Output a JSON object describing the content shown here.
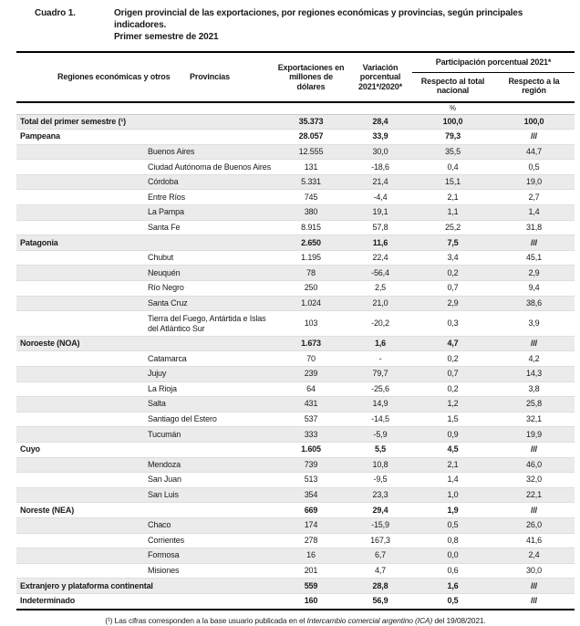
{
  "title": {
    "label": "Cuadro 1.",
    "text": "Origen provincial de las exportaciones, por regiones económicas y provincias, según principales indicadores.",
    "subtitle": "Primer semestre de 2021"
  },
  "colors": {
    "shaded_row": "#ebebeb",
    "rule_dark": "#000000",
    "rule_light": "#dedede",
    "text": "#1a1a1a"
  },
  "table": {
    "headers": {
      "col_region": "Regiones económicas y otros",
      "col_province": "Provincias",
      "col_exports": "Exportaciones en millones de dólares",
      "col_variation": "Variación porcentual 2021*/2020*",
      "group_participation": "Participación porcentual 2021*",
      "col_national": "Respecto al total nacional",
      "col_region_share": "Respecto a la región",
      "unit": "%"
    },
    "rows": [
      {
        "region": "Total del primer semestre (¹)",
        "province": "",
        "exports": "35.373",
        "variation": "28,4",
        "national": "100,0",
        "regional": "100,0"
      },
      {
        "region": "Pampeana",
        "province": "",
        "exports": "28.057",
        "variation": "33,9",
        "national": "79,3",
        "regional": "///"
      },
      {
        "region": "",
        "province": "Buenos Aires",
        "exports": "12.555",
        "variation": "30,0",
        "national": "35,5",
        "regional": "44,7"
      },
      {
        "region": "",
        "province": "Ciudad Autónoma de Buenos Aires",
        "exports": "131",
        "variation": "-18,6",
        "national": "0,4",
        "regional": "0,5"
      },
      {
        "region": "",
        "province": "Córdoba",
        "exports": "5.331",
        "variation": "21,4",
        "national": "15,1",
        "regional": "19,0"
      },
      {
        "region": "",
        "province": "Entre Ríos",
        "exports": "745",
        "variation": "-4,4",
        "national": "2,1",
        "regional": "2,7"
      },
      {
        "region": "",
        "province": "La Pampa",
        "exports": "380",
        "variation": "19,1",
        "national": "1,1",
        "regional": "1,4"
      },
      {
        "region": "",
        "province": "Santa Fe",
        "exports": "8.915",
        "variation": "57,8",
        "national": "25,2",
        "regional": "31,8"
      },
      {
        "region": "Patagonia",
        "province": "",
        "exports": "2.650",
        "variation": "11,6",
        "national": "7,5",
        "regional": "///"
      },
      {
        "region": "",
        "province": "Chubut",
        "exports": "1.195",
        "variation": "22,4",
        "national": "3,4",
        "regional": "45,1"
      },
      {
        "region": "",
        "province": "Neuquén",
        "exports": "78",
        "variation": "-56,4",
        "national": "0,2",
        "regional": "2,9"
      },
      {
        "region": "",
        "province": "Río Negro",
        "exports": "250",
        "variation": "2,5",
        "national": "0,7",
        "regional": "9,4"
      },
      {
        "region": "",
        "province": "Santa Cruz",
        "exports": "1.024",
        "variation": "21,0",
        "national": "2,9",
        "regional": "38,6"
      },
      {
        "region": "",
        "province": "Tierra del Fuego, Antártida e Islas del Atlántico Sur",
        "exports": "103",
        "variation": "-20,2",
        "national": "0,3",
        "regional": "3,9"
      },
      {
        "region": "Noroeste (NOA)",
        "province": "",
        "exports": "1.673",
        "variation": "1,6",
        "national": "4,7",
        "regional": "///"
      },
      {
        "region": "",
        "province": "Catamarca",
        "exports": "70",
        "variation": "-",
        "national": "0,2",
        "regional": "4,2"
      },
      {
        "region": "",
        "province": "Jujuy",
        "exports": "239",
        "variation": "79,7",
        "national": "0,7",
        "regional": "14,3"
      },
      {
        "region": "",
        "province": "La Rioja",
        "exports": "64",
        "variation": "-25,6",
        "national": "0,2",
        "regional": "3,8"
      },
      {
        "region": "",
        "province": "Salta",
        "exports": "431",
        "variation": "14,9",
        "national": "1,2",
        "regional": "25,8"
      },
      {
        "region": "",
        "province": "Santiago del Estero",
        "exports": "537",
        "variation": "-14,5",
        "national": "1,5",
        "regional": "32,1"
      },
      {
        "region": "",
        "province": "Tucumán",
        "exports": "333",
        "variation": "-5,9",
        "national": "0,9",
        "regional": "19,9"
      },
      {
        "region": "Cuyo",
        "province": "",
        "exports": "1.605",
        "variation": "5,5",
        "national": "4,5",
        "regional": "///"
      },
      {
        "region": "",
        "province": "Mendoza",
        "exports": "739",
        "variation": "10,8",
        "national": "2,1",
        "regional": "46,0"
      },
      {
        "region": "",
        "province": "San Juan",
        "exports": "513",
        "variation": "-9,5",
        "national": "1,4",
        "regional": "32,0"
      },
      {
        "region": "",
        "province": "San Luis",
        "exports": "354",
        "variation": "23,3",
        "national": "1,0",
        "regional": "22,1"
      },
      {
        "region": "Noreste (NEA)",
        "province": "",
        "exports": "669",
        "variation": "29,4",
        "national": "1,9",
        "regional": "///"
      },
      {
        "region": "",
        "province": "Chaco",
        "exports": "174",
        "variation": "-15,9",
        "national": "0,5",
        "regional": "26,0"
      },
      {
        "region": "",
        "province": "Corrientes",
        "exports": "278",
        "variation": "167,3",
        "national": "0,8",
        "regional": "41,6"
      },
      {
        "region": "",
        "province": "Formosa",
        "exports": "16",
        "variation": "6,7",
        "national": "0,0",
        "regional": "2,4"
      },
      {
        "region": "",
        "province": "Misiones",
        "exports": "201",
        "variation": "4,7",
        "national": "0,6",
        "regional": "30,0"
      },
      {
        "region": "Extranjero y plataforma continental",
        "province": "",
        "exports": "559",
        "variation": "28,8",
        "national": "1,6",
        "regional": "///"
      },
      {
        "region": "Indeterminado",
        "province": "",
        "exports": "160",
        "variation": "56,9",
        "national": "0,5",
        "regional": "///"
      }
    ]
  },
  "footnote": {
    "prefix": "(¹) Las cifras corresponden a la base usuario publicada en el ",
    "italic": "Intercambio comercial argentino (ICA)",
    "suffix": " del 19/08/2021."
  }
}
